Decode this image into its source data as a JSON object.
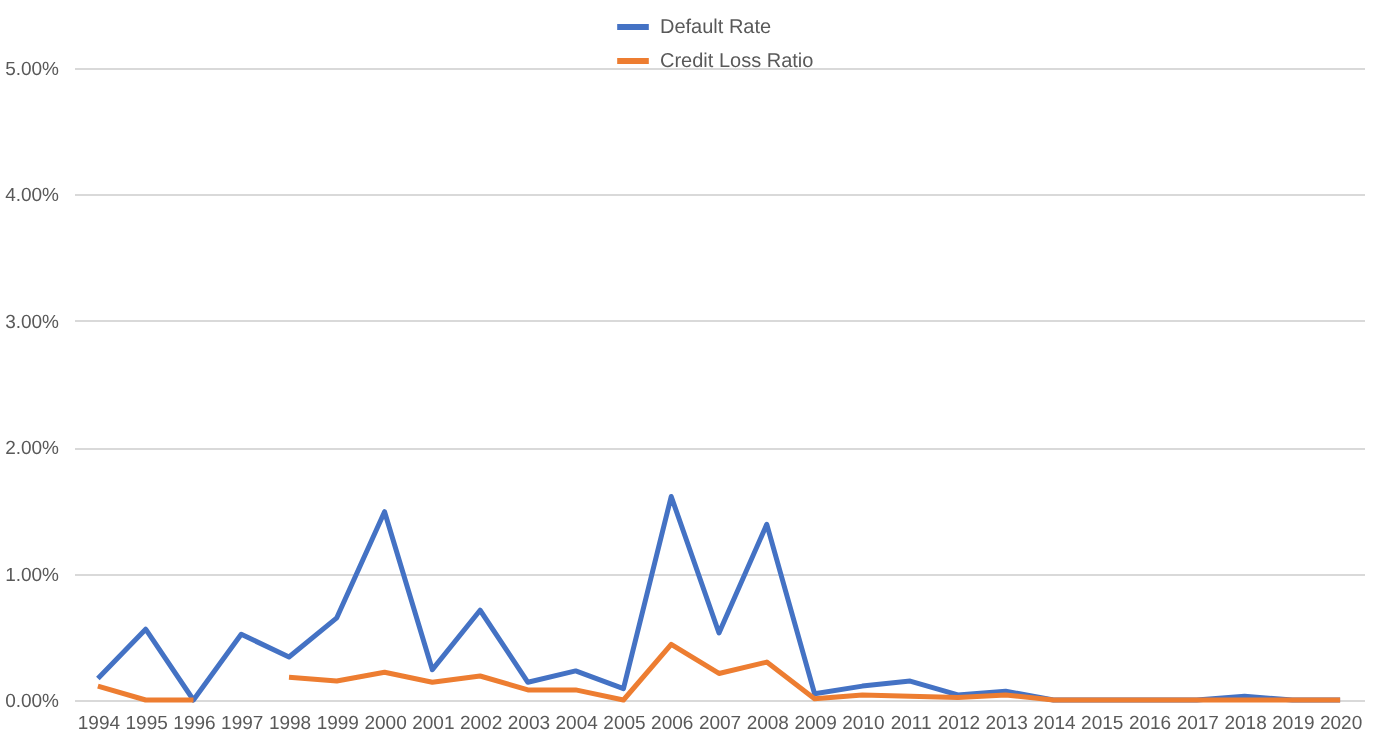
{
  "chart_data": {
    "type": "line",
    "categories": [
      "1994",
      "1995",
      "1996",
      "1997",
      "1998",
      "1999",
      "2000",
      "2001",
      "2002",
      "2003",
      "2004",
      "2005",
      "2006",
      "2007",
      "2008",
      "2009",
      "2010",
      "2011",
      "2012",
      "2013",
      "2014",
      "2015",
      "2016",
      "2017",
      "2018",
      "2019",
      "2020"
    ],
    "series": [
      {
        "name": "Default Rate",
        "color": "#4472c4",
        "values": [
          0.17,
          0.56,
          0,
          0.52,
          0.34,
          0.65,
          1.49,
          0.24,
          0.71,
          0.14,
          0.23,
          0.09,
          1.61,
          0.53,
          1.39,
          0.05,
          0.11,
          0.15,
          0.04,
          0.07,
          0,
          0,
          0,
          0,
          0.03,
          0,
          0
        ]
      },
      {
        "name": "Credit Loss Ratio",
        "color": "#ed7d31",
        "values": [
          0.11,
          0,
          0,
          null,
          0.18,
          0.15,
          0.22,
          0.14,
          0.19,
          0.08,
          0.08,
          0,
          0.44,
          0.21,
          0.3,
          0.01,
          0.04,
          0.03,
          0.02,
          0.04,
          0,
          0,
          0,
          0,
          0,
          0,
          0
        ]
      }
    ],
    "ylim": [
      0,
      5
    ],
    "yticks": [
      {
        "value": 0,
        "label": "0.00%"
      },
      {
        "value": 1,
        "label": "1.00%"
      },
      {
        "value": 2,
        "label": "2.00%"
      },
      {
        "value": 3,
        "label": "3.00%"
      },
      {
        "value": 4,
        "label": "4.00%"
      },
      {
        "value": 5,
        "label": "5.00%"
      }
    ],
    "grid": "y",
    "legend": "top"
  }
}
